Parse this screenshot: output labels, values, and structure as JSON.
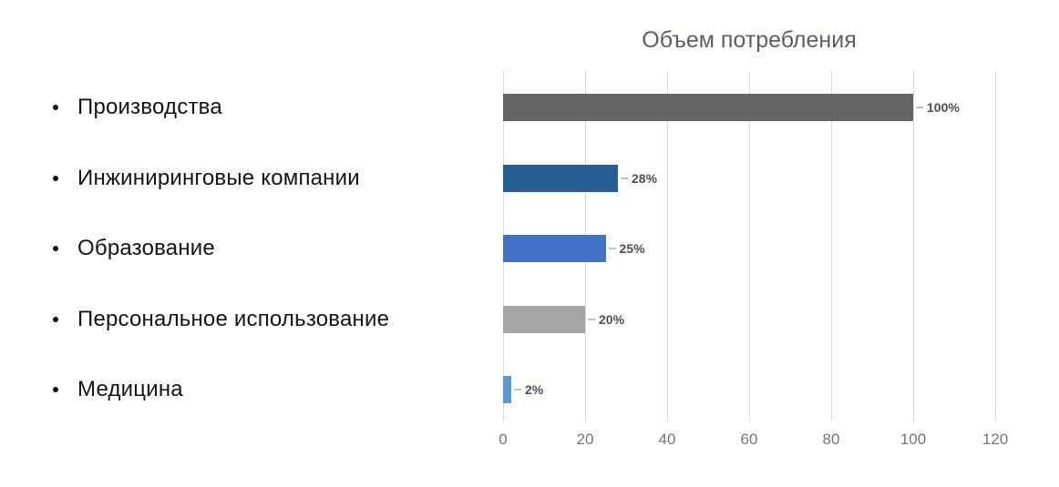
{
  "chart_data": {
    "type": "bar",
    "orientation": "horizontal",
    "title": "Объем потребления",
    "categories": [
      "Производства",
      "Инжиниринговые компании",
      "Образование",
      "Персональное использование",
      "Медицина"
    ],
    "values": [
      100,
      28,
      25,
      20,
      2
    ],
    "data_labels": [
      "100%",
      "28%",
      "25%",
      "20%",
      "2%"
    ],
    "bar_colors": [
      "#646464",
      "#255E91",
      "#4472C4",
      "#A5A5A5",
      "#5B9BD5"
    ],
    "xlim": [
      0,
      120
    ],
    "xticks": [
      0,
      20,
      40,
      60,
      80,
      100,
      120
    ],
    "grid": "vertical",
    "legend": "none",
    "colors": {
      "title": "#5d5e67",
      "gridline": "#d9d9d9",
      "tick_label": "#757575",
      "data_label": "#4d4f58",
      "leader_line": "#bfbfbf",
      "list_text": "#141414"
    }
  }
}
